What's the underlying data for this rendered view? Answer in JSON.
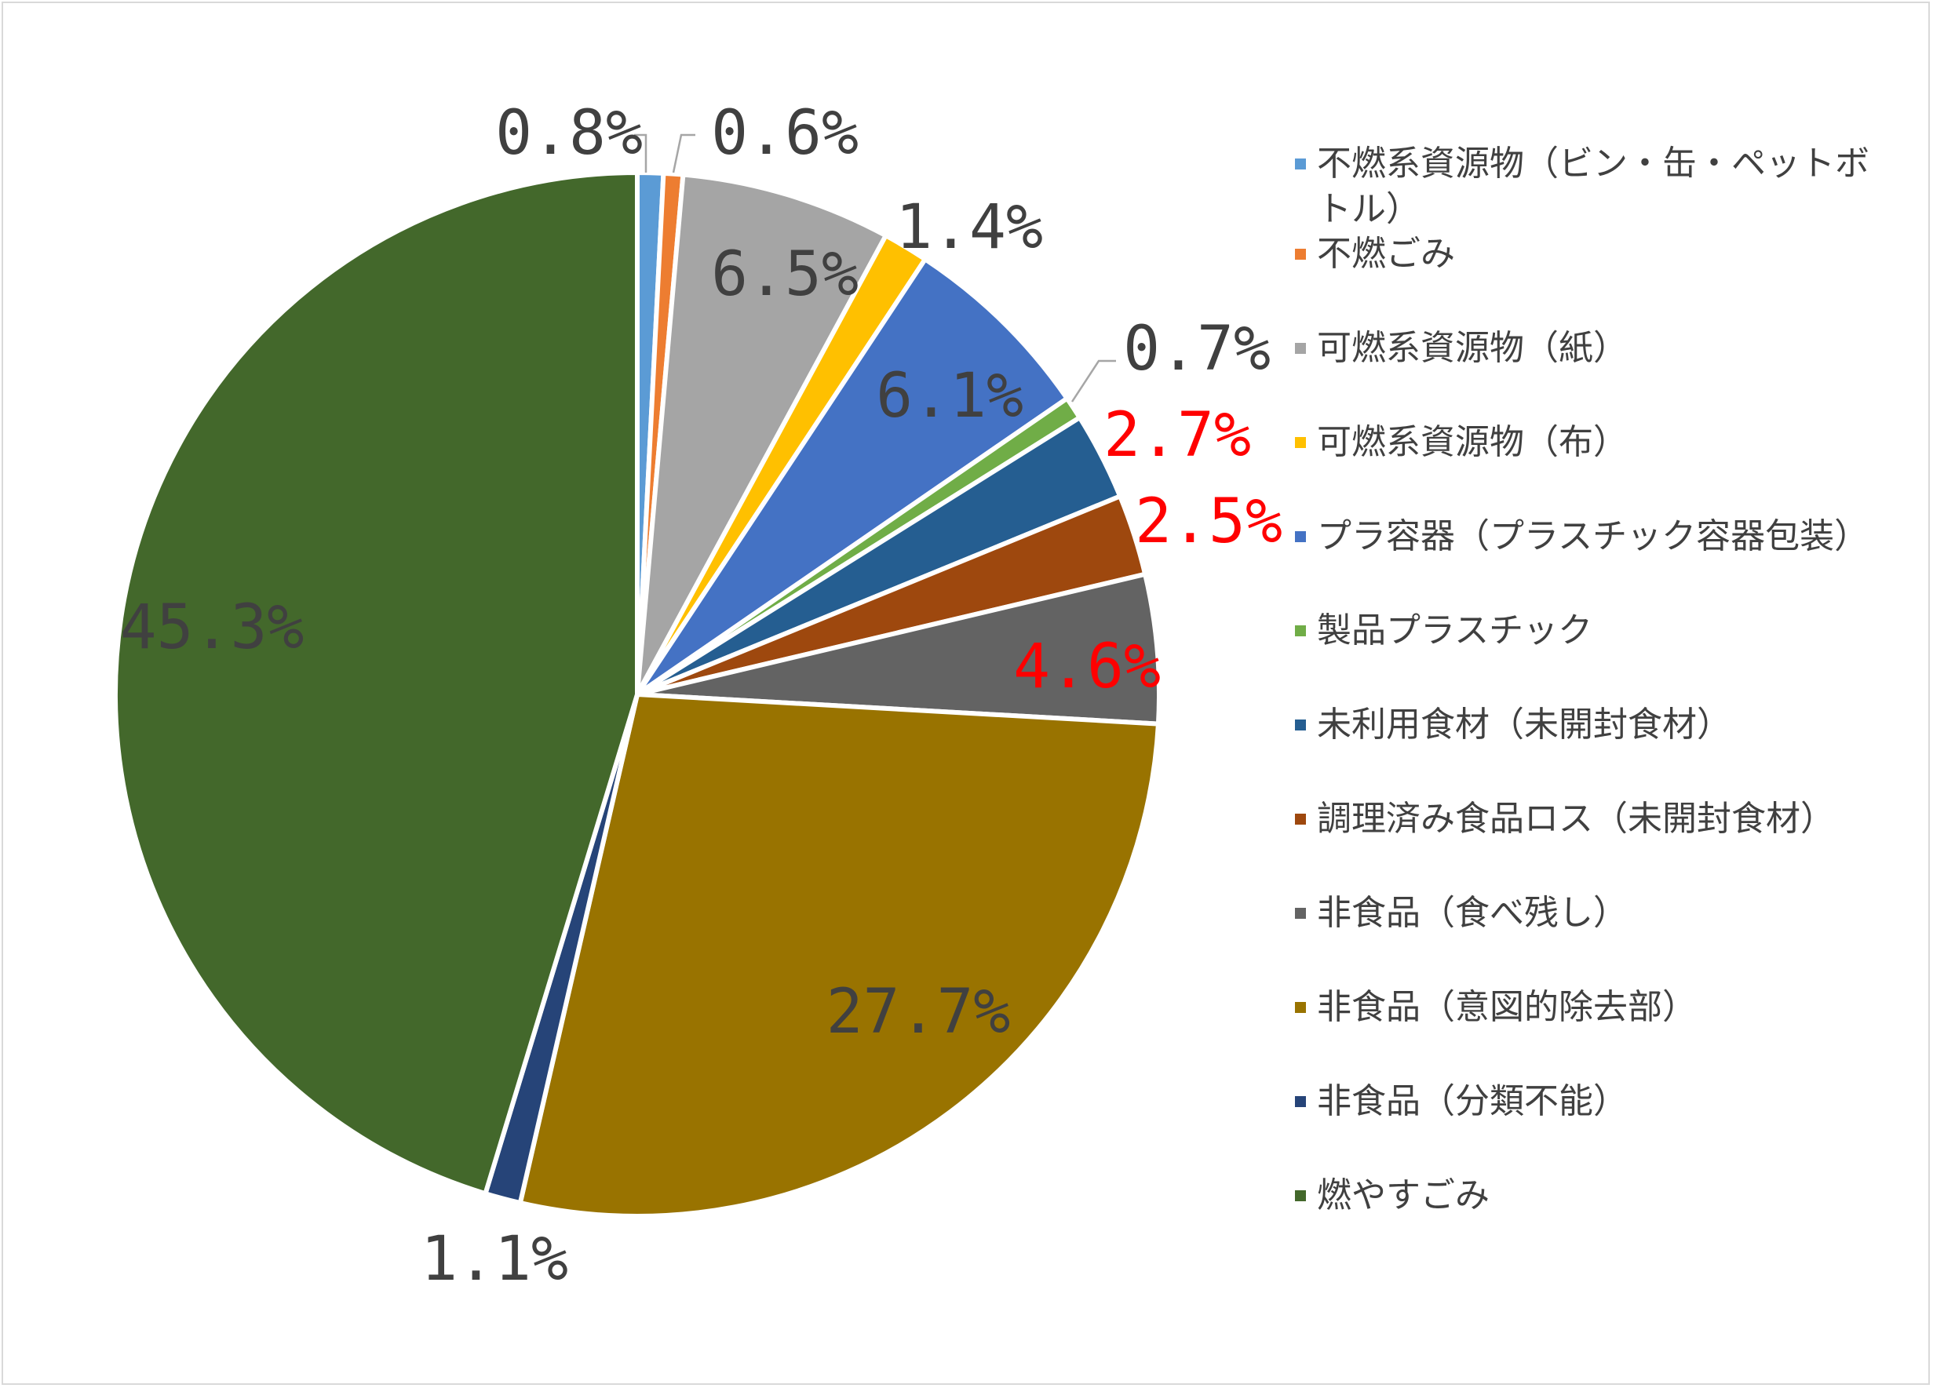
{
  "chart_data": {
    "type": "pie",
    "start_angle_deg": 0,
    "direction": "clockwise",
    "legend_position": "right",
    "slices": [
      {
        "name": "不燃系資源物（ビン・缶・ペットボトル）",
        "value": 0.8,
        "label": "0.8%",
        "color": "#5b9bd5",
        "label_color": "#404040"
      },
      {
        "name": "不燃ごみ",
        "value": 0.6,
        "label": "0.6%",
        "color": "#ed7d31",
        "label_color": "#404040"
      },
      {
        "name": "可燃系資源物（紙）",
        "value": 6.5,
        "label": "6.5%",
        "color": "#a5a5a5",
        "label_color": "#404040"
      },
      {
        "name": "可燃系資源物（布）",
        "value": 1.4,
        "label": "1.4%",
        "color": "#ffc000",
        "label_color": "#404040"
      },
      {
        "name": "プラ容器（プラスチック容器包装）",
        "value": 6.1,
        "label": "6.1%",
        "color": "#4472c4",
        "label_color": "#404040"
      },
      {
        "name": "製品プラスチック",
        "value": 0.7,
        "label": "0.7%",
        "color": "#70ad47",
        "label_color": "#404040"
      },
      {
        "name": "未利用食材（未開封食材）",
        "value": 2.7,
        "label": "2.7%",
        "color": "#255e91",
        "label_color": "#ff0000"
      },
      {
        "name": "調理済み食品ロス（未開封食材）",
        "value": 2.5,
        "label": "2.5%",
        "color": "#9e480e",
        "label_color": "#ff0000"
      },
      {
        "name": "非食品（食べ残し）",
        "value": 4.6,
        "label": "4.6%",
        "color": "#636363",
        "label_color": "#ff0000"
      },
      {
        "name": "非食品（意図的除去部）",
        "value": 27.7,
        "label": "27.7%",
        "color": "#997300",
        "label_color": "#404040"
      },
      {
        "name": "非食品（分類不能）",
        "value": 1.1,
        "label": "1.1%",
        "color": "#264478",
        "label_color": "#404040"
      },
      {
        "name": "燃やすごみ",
        "value": 45.3,
        "label": "45.3%",
        "color": "#43682b",
        "label_color": "#404040"
      }
    ]
  }
}
